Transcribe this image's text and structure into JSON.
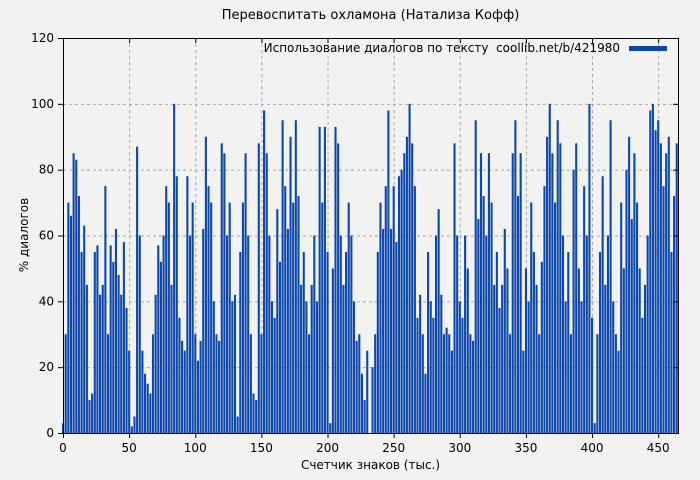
{
  "title": "Перевоспитать охламона (Натализа Кофф)",
  "legend": {
    "label": "Использование диалогов по тексту  coollib.net/b/421980"
  },
  "colors": {
    "bar": "#0d47ab",
    "background": "#f2f2f0",
    "grid": "#a8a8a8",
    "axis": "#000000"
  },
  "chart_data": {
    "type": "bar",
    "title": "Перевоспитать охламона (Натализа Кофф)",
    "xlabel": "Счетчик знаков (тыс.)",
    "ylabel": "% диалогов",
    "legend_entries": [
      "Использование диалогов по тексту  coollib.net/b/421980"
    ],
    "legend_position": "top-right-inside",
    "grid": true,
    "xlim": [
      0,
      465
    ],
    "ylim": [
      0,
      120
    ],
    "xticks": [
      0,
      50,
      100,
      150,
      200,
      250,
      300,
      350,
      400,
      450
    ],
    "yticks": [
      0,
      20,
      40,
      60,
      80,
      100,
      120
    ],
    "x_start": 0,
    "x_step": 2,
    "values": [
      3,
      30,
      70,
      66,
      85,
      83,
      72,
      55,
      63,
      45,
      10,
      12,
      55,
      57,
      42,
      45,
      75,
      30,
      57,
      52,
      62,
      48,
      42,
      58,
      38,
      25,
      2,
      5,
      87,
      60,
      25,
      18,
      15,
      12,
      30,
      42,
      57,
      52,
      60,
      75,
      70,
      45,
      100,
      78,
      35,
      28,
      25,
      78,
      60,
      70,
      30,
      22,
      28,
      62,
      90,
      75,
      70,
      40,
      30,
      28,
      88,
      85,
      60,
      70,
      40,
      42,
      5,
      55,
      70,
      85,
      60,
      30,
      12,
      10,
      88,
      30,
      98,
      85,
      60,
      40,
      35,
      68,
      52,
      95,
      75,
      62,
      90,
      70,
      95,
      72,
      45,
      55,
      40,
      30,
      45,
      60,
      40,
      93,
      70,
      93,
      55,
      3,
      50,
      93,
      88,
      60,
      45,
      55,
      70,
      60,
      40,
      28,
      30,
      18,
      10,
      25,
      0,
      20,
      30,
      55,
      70,
      62,
      75,
      98,
      62,
      75,
      58,
      78,
      80,
      85,
      90,
      100,
      88,
      75,
      35,
      42,
      30,
      18,
      55,
      40,
      35,
      60,
      68,
      42,
      30,
      32,
      30,
      25,
      88,
      60,
      40,
      35,
      60,
      50,
      30,
      28,
      95,
      65,
      85,
      72,
      60,
      85,
      70,
      45,
      55,
      38,
      45,
      62,
      50,
      30,
      85,
      95,
      72,
      85,
      25,
      50,
      40,
      70,
      55,
      45,
      30,
      52,
      75,
      90,
      100,
      85,
      70,
      95,
      88,
      60,
      40,
      55,
      30,
      80,
      88,
      50,
      40,
      75,
      60,
      100,
      35,
      3,
      30,
      55,
      78,
      45,
      60,
      95,
      40,
      30,
      25,
      70,
      50,
      80,
      90,
      65,
      85,
      70,
      50,
      35,
      45,
      60,
      98,
      100,
      92,
      95,
      88,
      75,
      85,
      90,
      55,
      72,
      88
    ]
  }
}
